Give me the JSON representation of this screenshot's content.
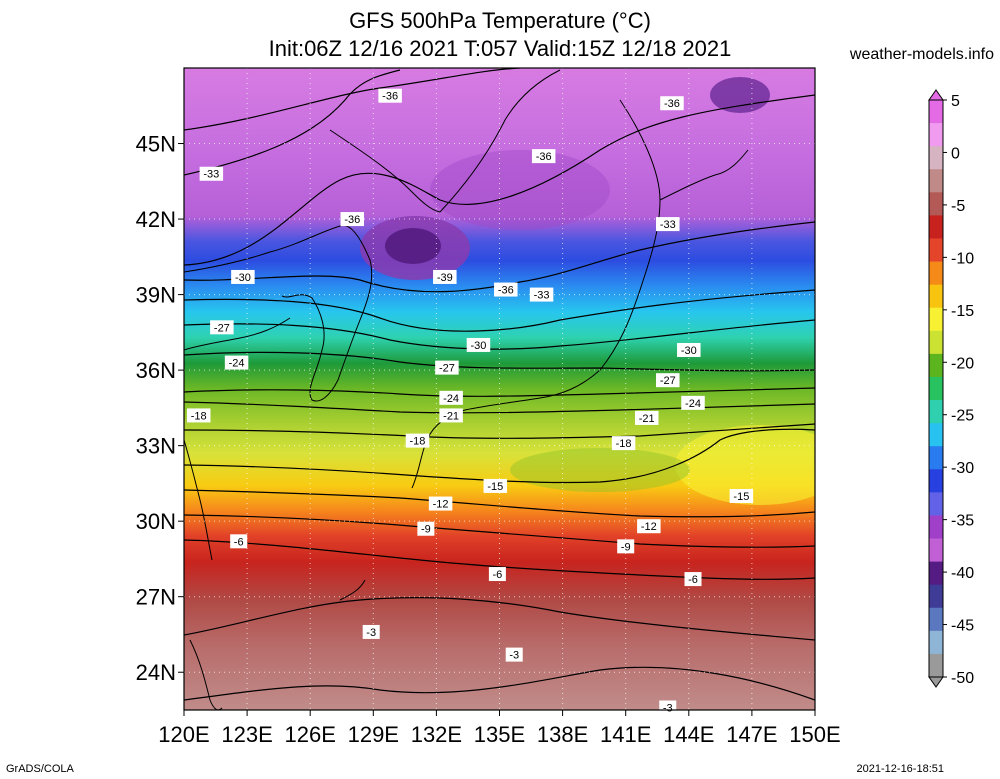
{
  "title": {
    "line1": "GFS 500hPa Temperature (°C)",
    "line2": "Init:06Z 12/16 2021  T:057  Valid:15Z 12/18 2021"
  },
  "brand": "weather-models.info",
  "footer": {
    "left": "GrADS/COLA",
    "right": "2021-12-16-18:51"
  },
  "map": {
    "lon_range": [
      120,
      150
    ],
    "lat_range": [
      22.5,
      48
    ],
    "lon_ticks": [
      120,
      123,
      126,
      129,
      132,
      135,
      138,
      141,
      144,
      147,
      150
    ],
    "lon_labels": [
      "120E",
      "123E",
      "126E",
      "129E",
      "132E",
      "135E",
      "138E",
      "141E",
      "144E",
      "147E",
      "150E"
    ],
    "lat_ticks": [
      24,
      27,
      30,
      33,
      36,
      39,
      42,
      45
    ],
    "lat_labels": [
      "24N",
      "27N",
      "30N",
      "33N",
      "36N",
      "39N",
      "42N",
      "45N"
    ],
    "gridlines": "dotted"
  },
  "colorbar": {
    "labels": [
      "5",
      "0",
      "-5",
      "-10",
      "-15",
      "-20",
      "-25",
      "-30",
      "-35",
      "-40",
      "-45",
      "-50"
    ],
    "colors": [
      "#e46ae6",
      "#f09af0",
      "#d6b4c2",
      "#c08a88",
      "#b45a56",
      "#c8221e",
      "#e3442a",
      "#f58a18",
      "#f8c410",
      "#f8f032",
      "#cce232",
      "#5cb41e",
      "#28c260",
      "#2ed0b0",
      "#28c2f0",
      "#287cf0",
      "#2840e0",
      "#6262e8",
      "#a040c8",
      "#c060d4",
      "#541c82",
      "#3e3c96",
      "#5a78c0",
      "#8eb4d6",
      "#9a9a9a"
    ]
  },
  "isotherm_labels": [
    {
      "text": "-36",
      "lon": 129.8,
      "lat": 46.9
    },
    {
      "text": "-36",
      "lon": 143.2,
      "lat": 46.6
    },
    {
      "text": "-33",
      "lon": 121.3,
      "lat": 43.8
    },
    {
      "text": "-36",
      "lon": 137.1,
      "lat": 44.5
    },
    {
      "text": "-36",
      "lon": 128.0,
      "lat": 42.0
    },
    {
      "text": "-33",
      "lon": 143.0,
      "lat": 41.8
    },
    {
      "text": "-30",
      "lon": 122.8,
      "lat": 39.7
    },
    {
      "text": "-39",
      "lon": 132.4,
      "lat": 39.7
    },
    {
      "text": "-36",
      "lon": 135.3,
      "lat": 39.2
    },
    {
      "text": "-33",
      "lon": 137.0,
      "lat": 39.0
    },
    {
      "text": "-27",
      "lon": 121.8,
      "lat": 37.7
    },
    {
      "text": "-30",
      "lon": 134.0,
      "lat": 37.0
    },
    {
      "text": "-30",
      "lon": 144.0,
      "lat": 36.8
    },
    {
      "text": "-24",
      "lon": 122.5,
      "lat": 36.3
    },
    {
      "text": "-27",
      "lon": 132.5,
      "lat": 36.1
    },
    {
      "text": "-27",
      "lon": 143.0,
      "lat": 35.6
    },
    {
      "text": "-24",
      "lon": 132.7,
      "lat": 34.9
    },
    {
      "text": "-24",
      "lon": 144.2,
      "lat": 34.7
    },
    {
      "text": "-18",
      "lon": 120.7,
      "lat": 34.2
    },
    {
      "text": "-21",
      "lon": 132.7,
      "lat": 34.2
    },
    {
      "text": "-21",
      "lon": 142.0,
      "lat": 34.1
    },
    {
      "text": "-18",
      "lon": 131.1,
      "lat": 33.2
    },
    {
      "text": "-18",
      "lon": 140.9,
      "lat": 33.1
    },
    {
      "text": "-15",
      "lon": 134.8,
      "lat": 31.4
    },
    {
      "text": "-15",
      "lon": 146.5,
      "lat": 31.0
    },
    {
      "text": "-12",
      "lon": 132.2,
      "lat": 30.7
    },
    {
      "text": "-9",
      "lon": 131.5,
      "lat": 29.7
    },
    {
      "text": "-12",
      "lon": 142.1,
      "lat": 29.8
    },
    {
      "text": "-6",
      "lon": 122.6,
      "lat": 29.2
    },
    {
      "text": "-9",
      "lon": 141.0,
      "lat": 29.0
    },
    {
      "text": "-6",
      "lon": 134.9,
      "lat": 27.9
    },
    {
      "text": "-6",
      "lon": 144.2,
      "lat": 27.7
    },
    {
      "text": "-3",
      "lon": 128.9,
      "lat": 25.6
    },
    {
      "text": "-3",
      "lon": 135.7,
      "lat": 24.7
    },
    {
      "text": "-3",
      "lon": 143.0,
      "lat": 22.6
    }
  ]
}
